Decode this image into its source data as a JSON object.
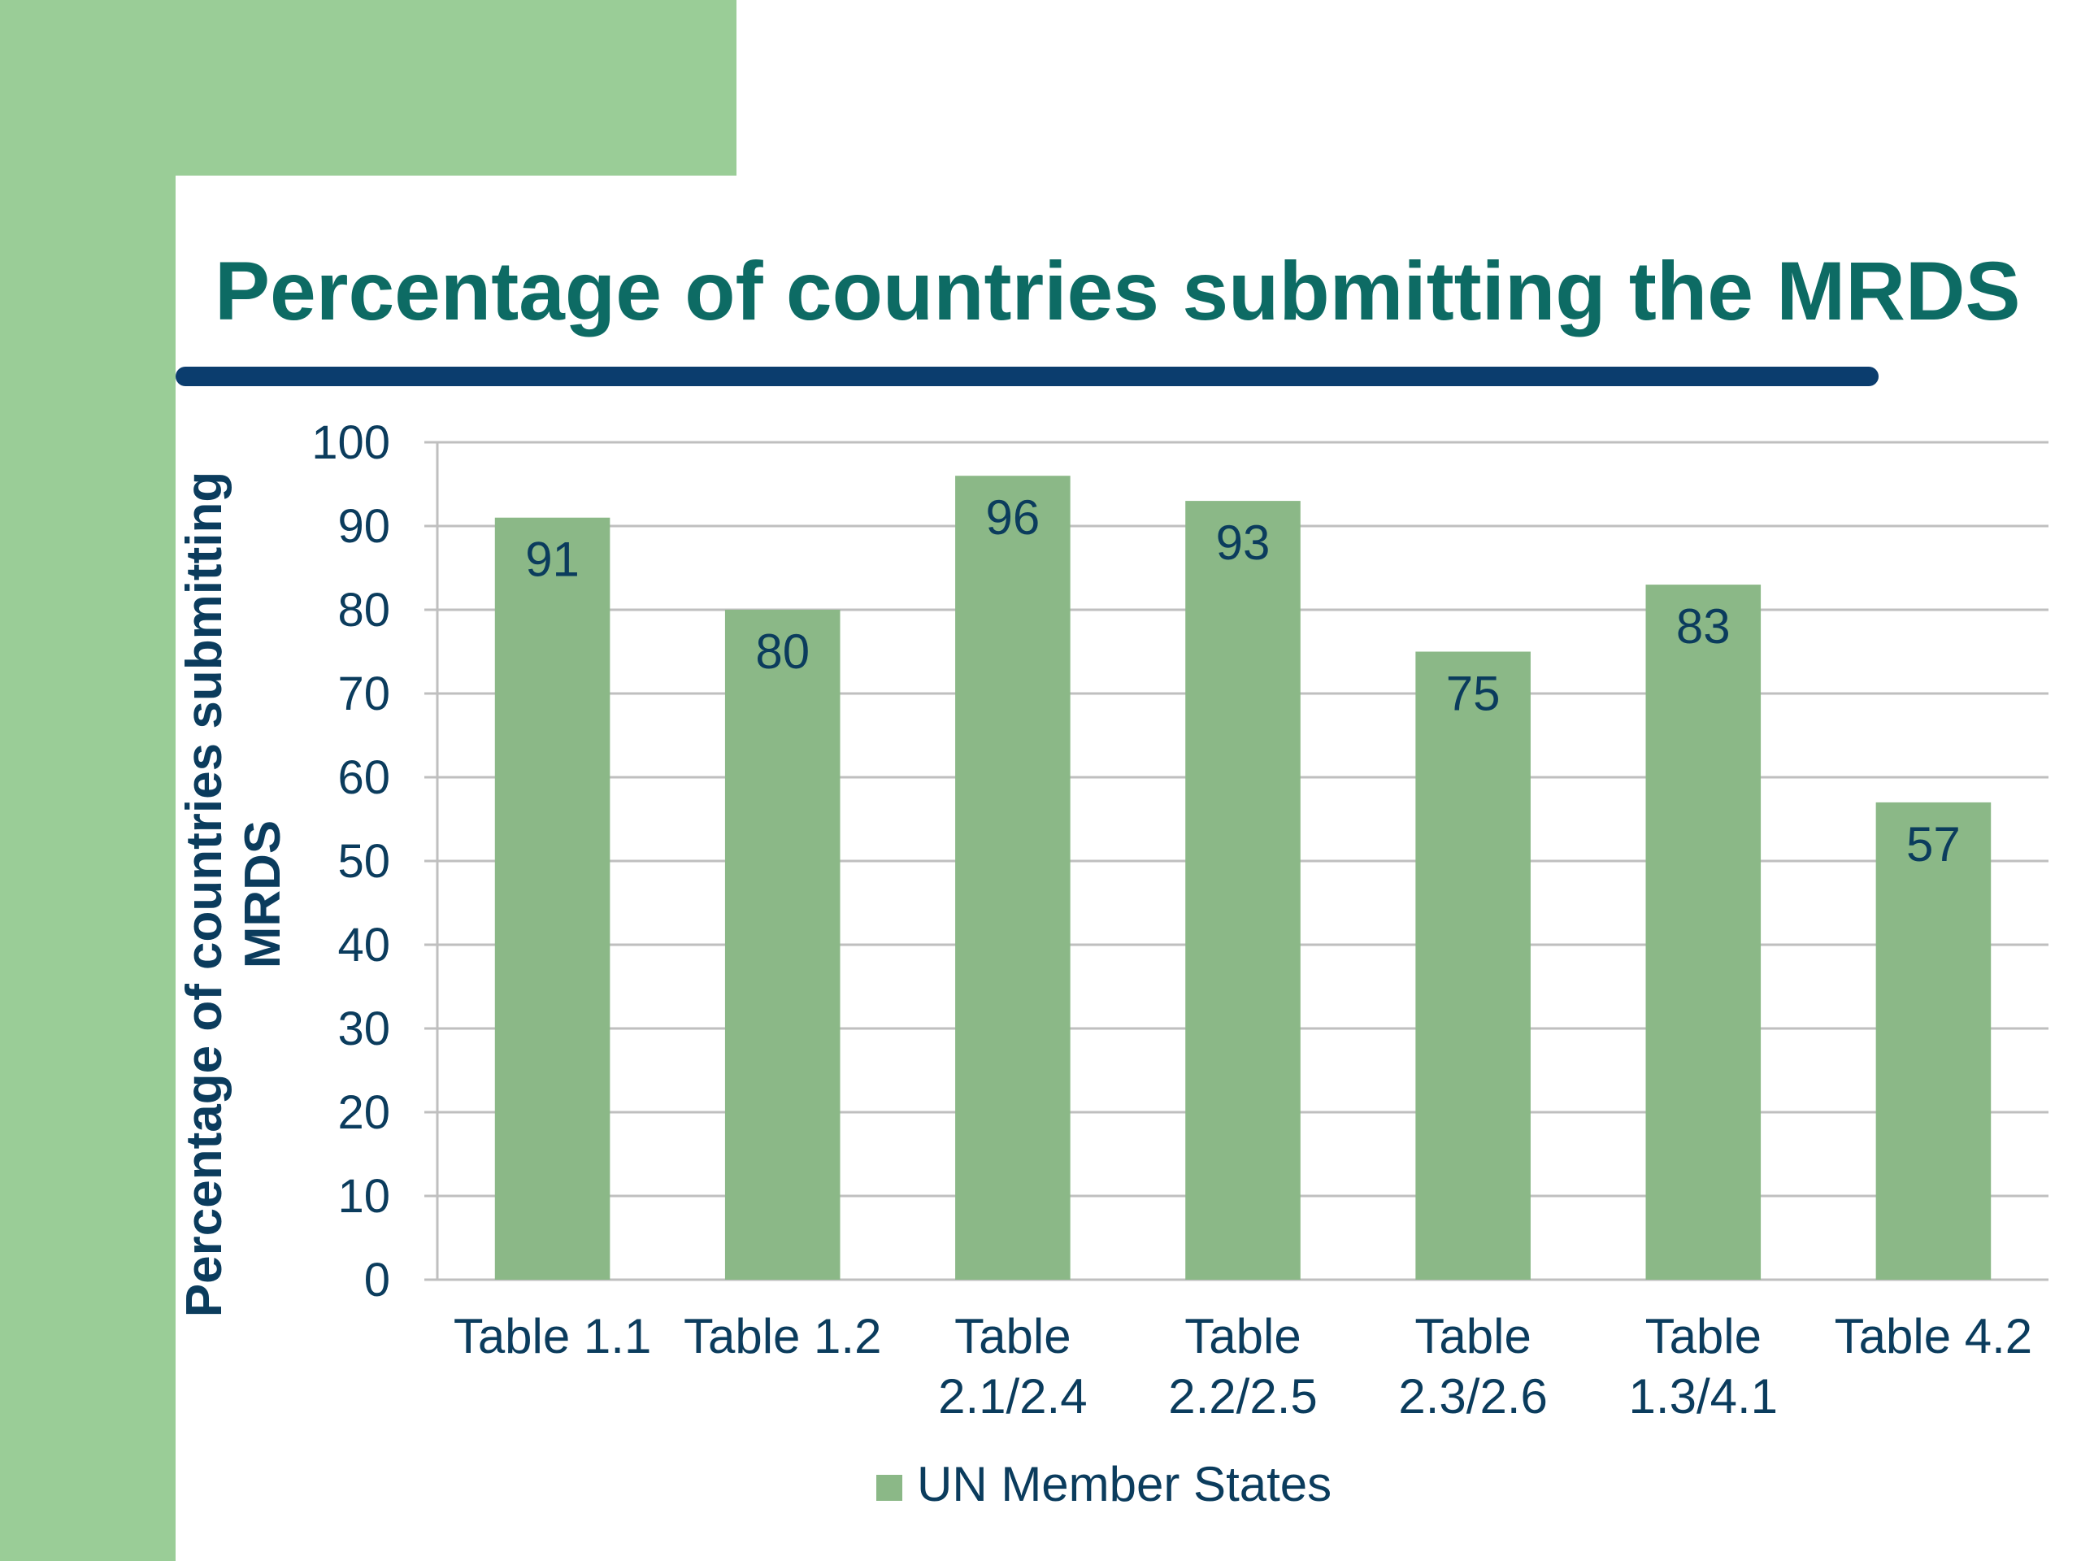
{
  "slide": {
    "title": "Percentage of countries submitting the MRDS"
  },
  "colors": {
    "band": "#9ACD97",
    "title": "#0D6B64",
    "rule": "#0B3D6E",
    "bar": "#8BB887",
    "text": "#0B3C5D",
    "grid": "#BFBFBF"
  },
  "chart_data": {
    "type": "bar",
    "title": "",
    "xlabel": "",
    "ylabel": "Percentage of countries submitting MRDS",
    "ylabel_lines": [
      "Percentage of countries submitting",
      "MRDS"
    ],
    "categories": [
      "Table 1.1",
      "Table 1.2",
      "Table 2.1/2.4",
      "Table 2.2/2.5",
      "Table 2.3/2.6",
      "Table 1.3/4.1",
      "Table 4.2"
    ],
    "category_lines": [
      [
        "Table 1.1"
      ],
      [
        "Table 1.2"
      ],
      [
        "Table",
        "2.1/2.4"
      ],
      [
        "Table",
        "2.2/2.5"
      ],
      [
        "Table",
        "2.3/2.6"
      ],
      [
        "Table",
        "1.3/4.1"
      ],
      [
        "Table 4.2"
      ]
    ],
    "series": [
      {
        "name": "UN Member States",
        "values": [
          91,
          80,
          96,
          93,
          75,
          83,
          57
        ]
      }
    ],
    "ylim": [
      0,
      100
    ],
    "yticks": [
      0,
      10,
      20,
      30,
      40,
      50,
      60,
      70,
      80,
      90,
      100
    ],
    "grid": true,
    "data_labels": true,
    "legend": "bottom"
  }
}
